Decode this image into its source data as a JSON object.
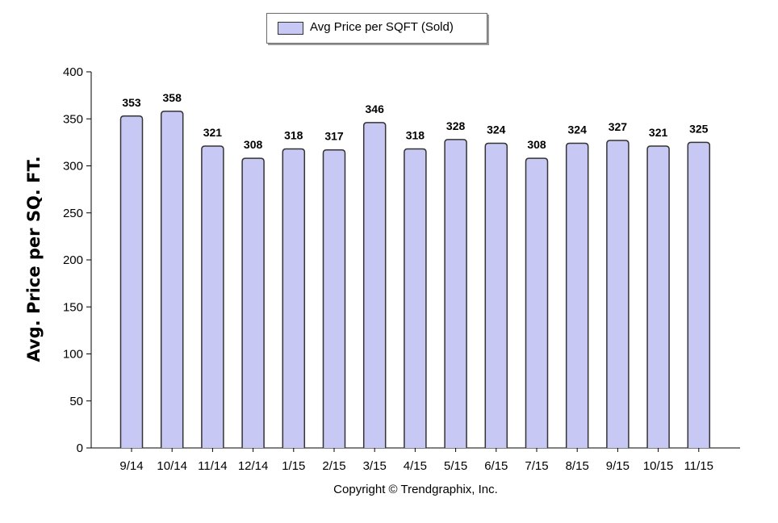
{
  "chart_data": {
    "type": "bar",
    "categories": [
      "9/14",
      "10/14",
      "11/14",
      "12/14",
      "1/15",
      "2/15",
      "3/15",
      "4/15",
      "5/15",
      "6/15",
      "7/15",
      "8/15",
      "9/15",
      "10/15",
      "11/15"
    ],
    "series": [
      {
        "name": "Avg Price per SQFT (Sold)",
        "values": [
          353,
          358,
          321,
          308,
          318,
          317,
          346,
          318,
          328,
          324,
          308,
          324,
          327,
          321,
          325
        ]
      }
    ],
    "ylabel": "Avg. Price per SQ. FT.",
    "xlabel": "",
    "ylim": [
      0,
      400
    ],
    "yticks": [
      0,
      50,
      100,
      150,
      200,
      250,
      300,
      350,
      400
    ],
    "grid": false,
    "legend_position": "top-center",
    "bar_color": "#c8c8f5",
    "bar_edge_color": "#333333"
  },
  "legend": {
    "label": "Avg Price per SQFT (Sold)"
  },
  "footer": {
    "copyright": "Copyright © Trendgraphix, Inc."
  }
}
